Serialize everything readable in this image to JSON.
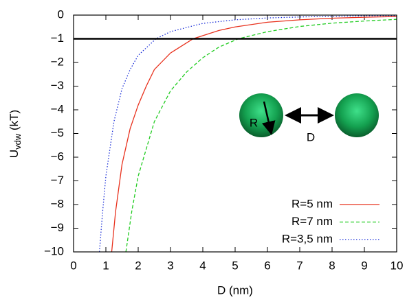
{
  "chart_data": {
    "type": "line",
    "xlabel": "D (nm)",
    "ylabel": {
      "main": "U",
      "sub": "vdw",
      "rest": " (kT)"
    },
    "xlim": [
      0,
      10
    ],
    "ylim": [
      -10,
      0
    ],
    "xticks": [
      0,
      1,
      2,
      3,
      4,
      5,
      6,
      7,
      8,
      9,
      10
    ],
    "yticks": [
      {
        "value": 0,
        "label": "0"
      },
      {
        "value": -1,
        "label": "−1"
      },
      {
        "value": -2,
        "label": "−2"
      },
      {
        "value": -3,
        "label": "−3"
      },
      {
        "value": -4,
        "label": "−4"
      },
      {
        "value": -5,
        "label": "−5"
      },
      {
        "value": -6,
        "label": "−6"
      },
      {
        "value": -7,
        "label": "−7"
      },
      {
        "value": -8,
        "label": "−8"
      },
      {
        "value": -9,
        "label": "−9"
      },
      {
        "value": -10,
        "label": "−10"
      }
    ],
    "reference_line": -1,
    "legend": "lower right",
    "annotations": {
      "radius": "R",
      "distance": "D"
    },
    "series": [
      {
        "name": "R=5 nm",
        "color": "#e8301c",
        "dash": "solid",
        "x": [
          1.18,
          1.3,
          1.5,
          1.75,
          2,
          2.25,
          2.5,
          3,
          3.7,
          4.5,
          5,
          6,
          7,
          8,
          9,
          10
        ],
        "values": [
          -10,
          -8.3,
          -6.3,
          -4.8,
          -3.8,
          -3.0,
          -2.3,
          -1.6,
          -1.0,
          -0.65,
          -0.5,
          -0.3,
          -0.2,
          -0.13,
          -0.09,
          -0.06
        ]
      },
      {
        "name": "R=7 nm",
        "color": "#22cc22",
        "dash": "dashed",
        "x": [
          1.62,
          1.8,
          2,
          2.5,
          3,
          3.5,
          4,
          4.5,
          5.1,
          6,
          7,
          8,
          9,
          10
        ],
        "values": [
          -10,
          -8.3,
          -6.8,
          -4.5,
          -3.2,
          -2.4,
          -1.8,
          -1.35,
          -1.0,
          -0.7,
          -0.48,
          -0.34,
          -0.25,
          -0.18
        ]
      },
      {
        "name": "R=3,5 nm",
        "color": "#1a2ed8",
        "dash": "dotted",
        "x": [
          0.8,
          0.9,
          1,
          1.25,
          1.5,
          1.75,
          2,
          2.55,
          3,
          4,
          5,
          6,
          7,
          8,
          9,
          10
        ],
        "values": [
          -10,
          -8.3,
          -6.8,
          -4.5,
          -3.1,
          -2.3,
          -1.7,
          -1.0,
          -0.7,
          -0.35,
          -0.2,
          -0.12,
          -0.08,
          -0.05,
          -0.03,
          -0.02
        ]
      }
    ]
  }
}
